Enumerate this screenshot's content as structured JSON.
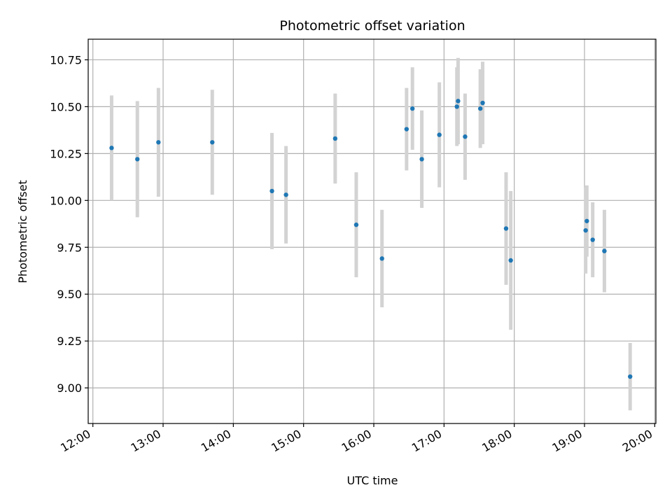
{
  "chart_data": {
    "type": "scatter",
    "title": "Photometric offset variation",
    "xlabel": "UTC time",
    "ylabel": "Photometric offset",
    "x_ticks": [
      "12:00",
      "13:00",
      "14:00",
      "15:00",
      "16:00",
      "17:00",
      "18:00",
      "19:00",
      "20:00"
    ],
    "y_ticks": [
      "9.00",
      "9.25",
      "9.50",
      "9.75",
      "10.00",
      "10.25",
      "10.50",
      "10.75"
    ],
    "xlim": [
      "11:56",
      "20:01"
    ],
    "ylim": [
      8.81,
      10.86
    ],
    "grid": true,
    "colors": {
      "point": "#1f77b4",
      "errorbar": "#d3d3d3",
      "grid": "#b0b0b0"
    },
    "points": [
      {
        "x": "12:16",
        "y": 10.28,
        "err": 0.28
      },
      {
        "x": "12:38",
        "y": 10.22,
        "err": 0.31
      },
      {
        "x": "12:56",
        "y": 10.31,
        "err": 0.29
      },
      {
        "x": "13:42",
        "y": 10.31,
        "err": 0.28
      },
      {
        "x": "14:33",
        "y": 10.05,
        "err": 0.31
      },
      {
        "x": "14:45",
        "y": 10.03,
        "err": 0.26
      },
      {
        "x": "15:27",
        "y": 10.33,
        "err": 0.24
      },
      {
        "x": "15:45",
        "y": 9.87,
        "err": 0.28
      },
      {
        "x": "16:07",
        "y": 9.69,
        "err": 0.26
      },
      {
        "x": "16:28",
        "y": 10.38,
        "err": 0.22
      },
      {
        "x": "16:33",
        "y": 10.49,
        "err": 0.22
      },
      {
        "x": "16:41",
        "y": 10.22,
        "err": 0.26
      },
      {
        "x": "16:56",
        "y": 10.35,
        "err": 0.28
      },
      {
        "x": "17:11",
        "y": 10.5,
        "err": 0.21
      },
      {
        "x": "17:12",
        "y": 10.53,
        "err": 0.23
      },
      {
        "x": "17:18",
        "y": 10.34,
        "err": 0.23
      },
      {
        "x": "17:31",
        "y": 10.49,
        "err": 0.21
      },
      {
        "x": "17:33",
        "y": 10.52,
        "err": 0.22
      },
      {
        "x": "17:53",
        "y": 9.85,
        "err": 0.3
      },
      {
        "x": "17:57",
        "y": 9.68,
        "err": 0.37
      },
      {
        "x": "19:01",
        "y": 9.84,
        "err": 0.23
      },
      {
        "x": "19:02",
        "y": 9.89,
        "err": 0.19
      },
      {
        "x": "19:07",
        "y": 9.79,
        "err": 0.2
      },
      {
        "x": "19:17",
        "y": 9.73,
        "err": 0.22
      },
      {
        "x": "19:39",
        "y": 9.06,
        "err": 0.18
      }
    ]
  }
}
